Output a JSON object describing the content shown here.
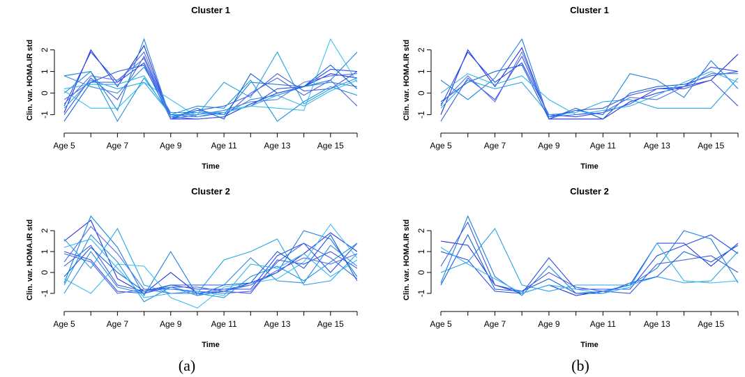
{
  "panel_labels": [
    "(a)",
    "(b)"
  ],
  "chart_data": [
    {
      "type": "line",
      "panel": "(a)",
      "title": "Cluster 1",
      "xlabel": "Time",
      "ylabel": "Clin. var. HOMA.IR std",
      "x_tick_labels": [
        "Age 5",
        "Age 7",
        "Age 9",
        "Age 11",
        "Age 13",
        "Age 15"
      ],
      "categories": [
        "Age 5",
        "Age 6",
        "Age 7",
        "Age 8",
        "Age 9",
        "Age 10",
        "Age 11",
        "Age 12",
        "Age 13",
        "Age 14",
        "Age 15",
        "Age 16"
      ],
      "ylim": [
        -1.4,
        2.6
      ],
      "yticks": [
        -1,
        0,
        1,
        2
      ],
      "grid": false,
      "series": [
        {
          "color": "#1f2fe0",
          "values": [
            -0.9,
            2.0,
            0.3,
            2.2,
            -1.2,
            -1.2,
            -1.1,
            -0.5,
            0.0,
            0.3,
            0.9,
            0.7
          ]
        },
        {
          "color": "#2b4de8",
          "values": [
            -0.6,
            1.9,
            0.5,
            1.4,
            -1.0,
            -1.1,
            -0.9,
            -0.6,
            0.2,
            0.3,
            1.1,
            1.0
          ]
        },
        {
          "color": "#1a7fe0",
          "values": [
            0.8,
            1.0,
            -0.8,
            2.5,
            -1.2,
            -0.8,
            -1.0,
            0.5,
            0.4,
            0.3,
            0.6,
            1.9
          ]
        },
        {
          "color": "#27a3e6",
          "values": [
            -0.7,
            0.6,
            0.2,
            0.5,
            -1.0,
            -1.0,
            0.5,
            -0.2,
            1.9,
            -0.5,
            0.2,
            0.7
          ]
        },
        {
          "color": "#38c0f0",
          "values": [
            0.1,
            -0.7,
            -0.7,
            0.5,
            -0.3,
            -1.1,
            -0.8,
            -0.6,
            -0.7,
            -0.8,
            2.5,
            0.5
          ]
        },
        {
          "color": "#3f58e4",
          "values": [
            -1.0,
            0.7,
            -0.3,
            1.7,
            -1.1,
            -0.8,
            -0.6,
            -0.1,
            0.9,
            0.1,
            0.2,
            1.0
          ]
        },
        {
          "color": "#1896df",
          "values": [
            0.0,
            1.0,
            -1.3,
            0.7,
            -1.0,
            -0.6,
            -0.7,
            0.6,
            -1.3,
            -0.4,
            0.3,
            -0.1
          ]
        },
        {
          "color": "#4a66e6",
          "values": [
            -0.3,
            0.5,
            0.5,
            1.9,
            -1.1,
            -1.2,
            -1.1,
            0.0,
            0.7,
            -0.1,
            0.6,
            -0.6
          ]
        },
        {
          "color": "#2a8ce4",
          "values": [
            0.8,
            0.3,
            0.0,
            1.2,
            -0.9,
            -0.9,
            -1.0,
            -0.3,
            -0.1,
            0.3,
            0.5,
            0.3
          ]
        },
        {
          "color": "#1560dc",
          "values": [
            -1.3,
            0.5,
            1.0,
            1.3,
            -1.2,
            -0.7,
            -1.2,
            0.9,
            0.0,
            0.3,
            1.3,
            0.2
          ]
        },
        {
          "color": "#33b4ec",
          "values": [
            0.2,
            0.4,
            0.4,
            0.8,
            -1.1,
            -0.9,
            -0.9,
            -0.6,
            -0.1,
            -0.6,
            0.1,
            0.6
          ]
        },
        {
          "color": "#5571ea",
          "values": [
            -0.5,
            0.8,
            0.6,
            1.6,
            -1.2,
            -1.0,
            -0.8,
            -0.4,
            -0.3,
            0.5,
            0.8,
            0.9
          ]
        }
      ]
    },
    {
      "type": "line",
      "panel": "(b)",
      "title": "Cluster 1",
      "xlabel": "Time",
      "ylabel": "Clin. var. HOMA.IR std",
      "x_tick_labels": [
        "Age 5",
        "Age 7",
        "Age 9",
        "Age 11",
        "Age 13",
        "Age 15"
      ],
      "categories": [
        "Age 5",
        "Age 6",
        "Age 7",
        "Age 8",
        "Age 9",
        "Age 10",
        "Age 11",
        "Age 12",
        "Age 13",
        "Age 14",
        "Age 15",
        "Age 16"
      ],
      "ylim": [
        -1.4,
        2.6
      ],
      "yticks": [
        -1,
        0,
        1,
        2
      ],
      "grid": false,
      "series": [
        {
          "color": "#1f2fe0",
          "values": [
            -1.0,
            2.0,
            0.3,
            2.1,
            -1.2,
            -1.2,
            -1.2,
            -0.4,
            0.0,
            0.3,
            0.6,
            1.8
          ]
        },
        {
          "color": "#2b4de8",
          "values": [
            -0.6,
            1.9,
            0.5,
            1.4,
            -1.0,
            -1.1,
            -0.9,
            -0.5,
            0.2,
            0.3,
            1.2,
            1.0
          ]
        },
        {
          "color": "#1a7fe0",
          "values": [
            0.6,
            -0.3,
            0.7,
            2.5,
            -1.2,
            -0.8,
            -1.0,
            0.9,
            0.6,
            -0.2,
            1.5,
            0.2
          ]
        },
        {
          "color": "#27a3e6",
          "values": [
            -0.7,
            0.6,
            0.2,
            0.5,
            -1.0,
            -0.9,
            -0.4,
            -0.3,
            -0.7,
            -0.7,
            -0.7,
            0.7
          ]
        },
        {
          "color": "#3f58e4",
          "values": [
            -1.3,
            0.7,
            -0.3,
            1.7,
            -1.1,
            -0.8,
            -0.7,
            -0.1,
            0.2,
            0.2,
            0.6,
            -0.6
          ]
        },
        {
          "color": "#1560dc",
          "values": [
            -0.4,
            0.5,
            1.0,
            1.3,
            -1.2,
            -0.7,
            -1.2,
            0.0,
            0.3,
            0.4,
            0.8,
            1.0
          ]
        },
        {
          "color": "#33b4ec",
          "values": [
            0.0,
            0.9,
            0.4,
            0.8,
            -0.3,
            -1.0,
            -0.8,
            -0.6,
            -0.1,
            0.5,
            1.0,
            0.5
          ]
        },
        {
          "color": "#5571ea",
          "values": [
            -0.5,
            0.8,
            -0.4,
            1.9,
            -1.1,
            -1.0,
            -0.9,
            -0.2,
            -0.3,
            0.3,
            0.9,
            0.9
          ]
        }
      ]
    },
    {
      "type": "line",
      "panel": "(a)",
      "title": "Cluster 2",
      "xlabel": "Time",
      "ylabel": "Clin. var. HOMA.IR std",
      "x_tick_labels": [
        "Age 5",
        "Age 7",
        "Age 9",
        "Age 11",
        "Age 13",
        "Age 15"
      ],
      "categories": [
        "Age 5",
        "Age 6",
        "Age 7",
        "Age 8",
        "Age 9",
        "Age 10",
        "Age 11",
        "Age 12",
        "Age 13",
        "Age 14",
        "Age 15",
        "Age 16"
      ],
      "ylim": [
        -1.4,
        2.6
      ],
      "yticks": [
        -1,
        0,
        1,
        2
      ],
      "grid": false,
      "series": [
        {
          "color": "#1f2fe0",
          "values": [
            1.5,
            2.5,
            -0.3,
            -1.0,
            0.0,
            -1.0,
            -0.9,
            -0.5,
            0.0,
            0.9,
            1.9,
            1.0
          ]
        },
        {
          "color": "#2b4de8",
          "values": [
            1.0,
            0.6,
            -0.9,
            -1.0,
            -0.6,
            -0.8,
            -0.8,
            -0.8,
            0.8,
            1.4,
            0.0,
            1.4
          ]
        },
        {
          "color": "#1a7fe0",
          "values": [
            -0.5,
            2.7,
            1.2,
            -1.1,
            1.0,
            -1.1,
            -0.9,
            -0.6,
            0.0,
            2.0,
            1.6,
            -0.2
          ]
        },
        {
          "color": "#27a3e6",
          "values": [
            1.6,
            0.2,
            2.1,
            -0.6,
            -1.0,
            -1.0,
            0.6,
            1.0,
            1.6,
            -0.6,
            -0.4,
            0.9
          ]
        },
        {
          "color": "#38c0f0",
          "values": [
            -0.3,
            -1.0,
            0.4,
            0.3,
            -1.2,
            -1.7,
            -0.7,
            -0.5,
            -0.3,
            0.5,
            2.3,
            0.7
          ]
        },
        {
          "color": "#3f58e4",
          "values": [
            0.3,
            1.3,
            -0.6,
            -0.9,
            -0.7,
            -0.7,
            -0.9,
            -1.0,
            0.6,
            0.4,
            1.0,
            0.2
          ]
        },
        {
          "color": "#1896df",
          "values": [
            -0.6,
            1.8,
            0.5,
            -1.4,
            -0.7,
            -1.0,
            -1.2,
            -0.2,
            0.3,
            -0.4,
            0.5,
            1.4
          ]
        },
        {
          "color": "#4a66e6",
          "values": [
            0.9,
            0.5,
            -1.0,
            -0.8,
            -0.8,
            -0.9,
            -1.0,
            -0.9,
            0.5,
            1.4,
            0.7,
            -0.3
          ]
        },
        {
          "color": "#2a8ce4",
          "values": [
            -1.0,
            1.0,
            -0.7,
            -1.0,
            -0.7,
            -1.1,
            -0.6,
            0.7,
            -0.4,
            -0.5,
            1.3,
            0.3
          ]
        },
        {
          "color": "#1560dc",
          "values": [
            -0.2,
            1.2,
            0.0,
            -0.9,
            -0.6,
            -0.6,
            -0.6,
            -0.5,
            1.0,
            0.2,
            1.8,
            -0.4
          ]
        },
        {
          "color": "#33b4ec",
          "values": [
            1.2,
            1.6,
            0.2,
            -1.2,
            -1.0,
            -0.9,
            -1.1,
            0.4,
            0.2,
            0.9,
            -0.2,
            0.6
          ]
        },
        {
          "color": "#5571ea",
          "values": [
            0.5,
            2.2,
            0.9,
            -0.8,
            -1.0,
            -1.0,
            -0.8,
            -0.6,
            0.1,
            0.7,
            0.4,
            0.9
          ]
        }
      ]
    },
    {
      "type": "line",
      "panel": "(b)",
      "title": "Cluster 2",
      "xlabel": "Time",
      "ylabel": "Clin. var. HOMA.IR std",
      "x_tick_labels": [
        "Age 5",
        "Age 7",
        "Age 9",
        "Age 11",
        "Age 13",
        "Age 15"
      ],
      "categories": [
        "Age 5",
        "Age 6",
        "Age 7",
        "Age 8",
        "Age 9",
        "Age 10",
        "Age 11",
        "Age 12",
        "Age 13",
        "Age 14",
        "Age 15",
        "Age 16"
      ],
      "ylim": [
        -1.4,
        2.6
      ],
      "yticks": [
        -1,
        0,
        1,
        2
      ],
      "grid": false,
      "series": [
        {
          "color": "#1f2fe0",
          "values": [
            1.5,
            1.3,
            -0.6,
            -1.0,
            -0.6,
            -1.1,
            -0.9,
            -0.6,
            1.4,
            1.4,
            0.3,
            1.4
          ]
        },
        {
          "color": "#2b4de8",
          "values": [
            1.0,
            0.6,
            -0.9,
            -1.0,
            0.7,
            -0.8,
            -0.8,
            -0.8,
            0.8,
            1.3,
            1.8,
            0.9
          ]
        },
        {
          "color": "#1a7fe0",
          "values": [
            -0.5,
            2.7,
            -0.2,
            -1.1,
            0.3,
            -1.0,
            -0.9,
            -0.6,
            0.2,
            2.0,
            1.6,
            -0.5
          ]
        },
        {
          "color": "#27a3e6",
          "values": [
            0.0,
            0.5,
            2.1,
            -0.6,
            -0.9,
            -0.6,
            -0.6,
            -0.6,
            -0.2,
            -0.5,
            -0.4,
            1.0
          ]
        },
        {
          "color": "#3f58e4",
          "values": [
            0.3,
            2.4,
            -0.6,
            -0.9,
            0.0,
            -0.7,
            -0.9,
            -1.0,
            0.4,
            0.6,
            0.8,
            0.0
          ]
        },
        {
          "color": "#1560dc",
          "values": [
            -0.6,
            1.8,
            -0.8,
            -0.9,
            -0.3,
            -1.0,
            -1.0,
            -0.5,
            -0.2,
            1.0,
            0.5,
            1.3
          ]
        },
        {
          "color": "#33b4ec",
          "values": [
            1.2,
            0.4,
            -0.3,
            -1.0,
            -0.6,
            -0.8,
            -1.0,
            -0.7,
            1.4,
            -0.4,
            -0.5,
            -0.4
          ]
        }
      ]
    }
  ]
}
